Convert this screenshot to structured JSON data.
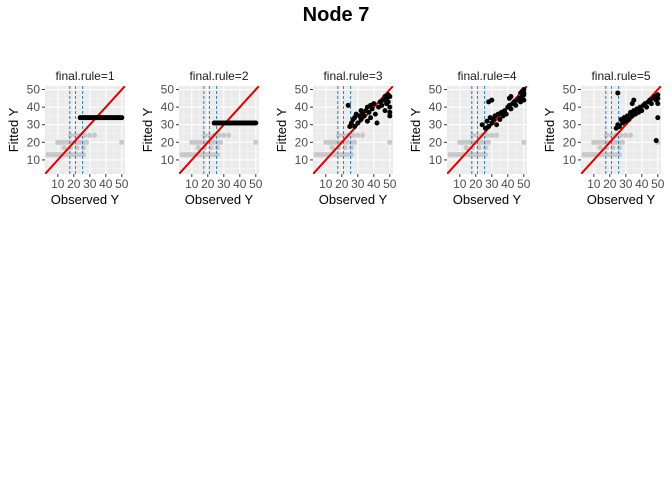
{
  "page": {
    "title": "Node 7"
  },
  "chart_data": {
    "type": "scatter",
    "title": "Node 7",
    "xlabel": "Observed Y",
    "ylabel": "Fitted Y",
    "xlim": [
      2,
      52
    ],
    "ylim": [
      2,
      52
    ],
    "x_ticks": [
      10,
      20,
      30,
      40,
      50
    ],
    "y_ticks": [
      10,
      20,
      30,
      40,
      50
    ],
    "grid": true,
    "reference_line": {
      "intercept": 0,
      "slope": 1,
      "color": "#e00000"
    },
    "vlines": {
      "x": [
        17.5,
        21,
        25.5
      ],
      "color": "#2a7fc6",
      "style": "dashed"
    },
    "colors": {
      "active_points": "#000000",
      "background_points": "#c8c8c8",
      "panel_bg": "#ebebeb",
      "strip_bg": "#ffffff"
    },
    "background_points": [
      [
        4,
        13
      ],
      [
        6,
        13
      ],
      [
        8,
        13
      ],
      [
        10,
        13
      ],
      [
        12,
        13
      ],
      [
        14,
        13
      ],
      [
        16,
        13
      ],
      [
        18,
        13
      ],
      [
        20,
        13
      ],
      [
        22,
        13
      ],
      [
        24,
        13
      ],
      [
        26,
        13
      ],
      [
        10,
        20
      ],
      [
        12,
        20
      ],
      [
        14,
        20
      ],
      [
        16,
        20
      ],
      [
        18,
        20
      ],
      [
        20,
        20
      ],
      [
        22,
        20
      ],
      [
        24,
        20
      ],
      [
        26,
        20
      ],
      [
        28,
        20
      ],
      [
        50,
        20
      ],
      [
        14,
        17
      ],
      [
        18,
        17
      ],
      [
        22,
        17
      ],
      [
        26,
        17
      ],
      [
        18,
        24
      ],
      [
        21,
        24
      ],
      [
        24,
        24
      ],
      [
        27,
        24
      ],
      [
        30,
        24
      ],
      [
        33,
        24
      ]
    ],
    "panels": [
      {
        "strip": "final.rule=1",
        "points": [
          [
            24,
            34
          ],
          [
            25,
            34
          ],
          [
            26,
            34
          ],
          [
            27,
            34
          ],
          [
            28,
            34
          ],
          [
            29,
            34
          ],
          [
            30,
            34
          ],
          [
            31,
            34
          ],
          [
            32,
            34
          ],
          [
            33,
            34
          ],
          [
            34,
            34
          ],
          [
            35,
            34
          ],
          [
            36,
            34
          ],
          [
            37,
            34
          ],
          [
            38,
            34
          ],
          [
            39,
            34
          ],
          [
            40,
            34
          ],
          [
            41,
            34
          ],
          [
            42,
            34
          ],
          [
            43,
            34
          ],
          [
            44,
            34
          ],
          [
            45,
            34
          ],
          [
            46,
            34
          ],
          [
            47,
            34
          ],
          [
            48,
            34
          ],
          [
            49,
            34
          ],
          [
            50,
            34
          ]
        ]
      },
      {
        "strip": "final.rule=2",
        "points": [
          [
            24,
            31
          ],
          [
            25,
            31
          ],
          [
            26,
            31
          ],
          [
            27,
            31
          ],
          [
            28,
            31
          ],
          [
            29,
            31
          ],
          [
            30,
            31
          ],
          [
            31,
            31
          ],
          [
            32,
            31
          ],
          [
            33,
            31
          ],
          [
            34,
            31
          ],
          [
            35,
            31
          ],
          [
            36,
            31
          ],
          [
            37,
            31
          ],
          [
            38,
            31
          ],
          [
            39,
            31
          ],
          [
            40,
            31
          ],
          [
            41,
            31
          ],
          [
            42,
            31
          ],
          [
            43,
            31
          ],
          [
            44,
            31
          ],
          [
            45,
            31
          ],
          [
            46,
            31
          ],
          [
            47,
            31
          ],
          [
            48,
            31
          ],
          [
            49,
            31
          ],
          [
            50,
            31
          ]
        ]
      },
      {
        "strip": "final.rule=3",
        "points": [
          [
            24,
            41
          ],
          [
            25,
            29
          ],
          [
            26,
            31
          ],
          [
            27,
            33
          ],
          [
            28,
            29
          ],
          [
            28,
            34
          ],
          [
            29,
            36
          ],
          [
            30,
            31
          ],
          [
            31,
            35
          ],
          [
            32,
            33
          ],
          [
            32,
            38
          ],
          [
            33,
            36
          ],
          [
            34,
            35
          ],
          [
            35,
            38
          ],
          [
            36,
            32
          ],
          [
            36,
            40
          ],
          [
            37,
            37
          ],
          [
            38,
            34
          ],
          [
            38,
            41
          ],
          [
            39,
            39
          ],
          [
            40,
            42
          ],
          [
            41,
            36
          ],
          [
            42,
            31
          ],
          [
            43,
            40
          ],
          [
            44,
            43
          ],
          [
            45,
            41
          ],
          [
            46,
            44
          ],
          [
            47,
            38
          ],
          [
            48,
            45
          ],
          [
            48,
            42
          ],
          [
            49,
            47
          ],
          [
            50,
            46
          ],
          [
            50,
            40
          ],
          [
            50,
            37
          ],
          [
            50,
            35
          ],
          [
            49,
            43
          ],
          [
            47,
            46
          ]
        ]
      },
      {
        "strip": "final.rule=4",
        "points": [
          [
            24,
            30
          ],
          [
            26,
            28
          ],
          [
            27,
            32
          ],
          [
            28,
            29
          ],
          [
            29,
            34
          ],
          [
            30,
            31
          ],
          [
            31,
            33
          ],
          [
            32,
            35
          ],
          [
            33,
            30
          ],
          [
            34,
            36
          ],
          [
            35,
            33
          ],
          [
            36,
            37
          ],
          [
            37,
            35
          ],
          [
            38,
            38
          ],
          [
            39,
            36
          ],
          [
            40,
            40
          ],
          [
            41,
            41
          ],
          [
            42,
            39
          ],
          [
            43,
            42
          ],
          [
            44,
            43
          ],
          [
            45,
            41
          ],
          [
            46,
            44
          ],
          [
            47,
            45
          ],
          [
            48,
            43
          ],
          [
            49,
            46
          ],
          [
            50,
            47
          ],
          [
            50,
            44
          ],
          [
            50,
            48
          ],
          [
            49,
            49
          ],
          [
            50,
            50
          ],
          [
            48,
            48
          ],
          [
            42,
            46
          ],
          [
            41,
            45
          ],
          [
            30,
            44
          ],
          [
            28,
            43
          ]
        ]
      },
      {
        "strip": "final.rule=5",
        "points": [
          [
            24,
            28
          ],
          [
            25,
            30
          ],
          [
            26,
            29
          ],
          [
            27,
            33
          ],
          [
            28,
            31
          ],
          [
            29,
            34
          ],
          [
            30,
            32
          ],
          [
            31,
            35
          ],
          [
            32,
            33
          ],
          [
            33,
            37
          ],
          [
            34,
            35
          ],
          [
            35,
            38
          ],
          [
            36,
            36
          ],
          [
            37,
            39
          ],
          [
            38,
            37
          ],
          [
            39,
            40
          ],
          [
            40,
            38
          ],
          [
            41,
            41
          ],
          [
            42,
            42
          ],
          [
            43,
            40
          ],
          [
            44,
            43
          ],
          [
            45,
            44
          ],
          [
            46,
            42
          ],
          [
            47,
            45
          ],
          [
            48,
            46
          ],
          [
            49,
            44
          ],
          [
            50,
            47
          ],
          [
            50,
            45
          ],
          [
            50,
            42
          ],
          [
            50,
            34
          ],
          [
            49,
            21
          ],
          [
            35,
            44
          ],
          [
            34,
            42
          ],
          [
            25,
            48
          ]
        ]
      }
    ]
  }
}
